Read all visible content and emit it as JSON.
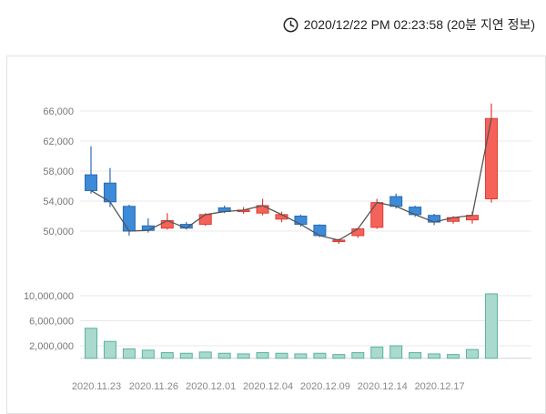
{
  "header": {
    "timestamp": "2020/12/22 PM 02:23:58 (20분 지연 정보)",
    "clock_icon": "clock-icon"
  },
  "colors": {
    "up_fill": "#f4625a",
    "up_stroke": "#e03b33",
    "down_fill": "#3c8ad8",
    "down_stroke": "#2a6cb5",
    "volume_fill": "#aad9cd",
    "volume_stroke": "#5ab3a0",
    "close_line": "#555555",
    "grid": "#e8e8e8",
    "axis_line": "#d5d5d5",
    "axis_text": "#777777",
    "date_text": "#888888",
    "header_text": "#222222"
  },
  "chart_data": {
    "type": "candlestick+volume",
    "title": "",
    "legend_position": "none",
    "grid": true,
    "price_axis": {
      "ticks": [
        50000,
        54000,
        58000,
        62000,
        66000
      ],
      "labels": [
        "50,000",
        "54,000",
        "58,000",
        "62,000",
        "66,000"
      ],
      "range": [
        45000,
        69000
      ]
    },
    "volume_axis": {
      "ticks": [
        2000000,
        6000000,
        10000000
      ],
      "labels": [
        "2,000,000",
        "6,000,000",
        "10,000,000"
      ],
      "range": [
        0,
        12000000
      ]
    },
    "x_ticks": [
      {
        "index": 0,
        "label": "2020.11.23"
      },
      {
        "index": 3,
        "label": "2020.11.26"
      },
      {
        "index": 6,
        "label": "2020.12.01"
      },
      {
        "index": 9,
        "label": "2020.12.04"
      },
      {
        "index": 12,
        "label": "2020.12.09"
      },
      {
        "index": 15,
        "label": "2020.12.14"
      },
      {
        "index": 18,
        "label": "2020.12.17"
      }
    ],
    "candles": [
      {
        "date": "2020.11.23",
        "open": 57500,
        "high": 61300,
        "low": 55000,
        "close": 55400,
        "volume": 4800000
      },
      {
        "date": "2020.11.24",
        "open": 56400,
        "high": 58400,
        "low": 53200,
        "close": 53900,
        "volume": 2700000
      },
      {
        "date": "2020.11.25",
        "open": 53300,
        "high": 53500,
        "low": 49400,
        "close": 50000,
        "volume": 1500000
      },
      {
        "date": "2020.11.26",
        "open": 50700,
        "high": 51700,
        "low": 49800,
        "close": 50100,
        "volume": 1300000
      },
      {
        "date": "2020.11.27",
        "open": 50400,
        "high": 52400,
        "low": 50200,
        "close": 51400,
        "volume": 900000
      },
      {
        "date": "2020.11.30",
        "open": 50900,
        "high": 51200,
        "low": 50200,
        "close": 50400,
        "volume": 800000
      },
      {
        "date": "2020.12.01",
        "open": 50900,
        "high": 52400,
        "low": 50700,
        "close": 52200,
        "volume": 1000000
      },
      {
        "date": "2020.12.02",
        "open": 53100,
        "high": 53400,
        "low": 52400,
        "close": 52600,
        "volume": 800000
      },
      {
        "date": "2020.12.03",
        "open": 52600,
        "high": 53200,
        "low": 52300,
        "close": 52800,
        "volume": 700000
      },
      {
        "date": "2020.12.04",
        "open": 52400,
        "high": 54300,
        "low": 52100,
        "close": 53400,
        "volume": 900000
      },
      {
        "date": "2020.12.07",
        "open": 51600,
        "high": 52600,
        "low": 51200,
        "close": 52200,
        "volume": 800000
      },
      {
        "date": "2020.12.08",
        "open": 52000,
        "high": 52200,
        "low": 50600,
        "close": 50900,
        "volume": 700000
      },
      {
        "date": "2020.12.09",
        "open": 50800,
        "high": 50900,
        "low": 49200,
        "close": 49400,
        "volume": 800000
      },
      {
        "date": "2020.12.10",
        "open": 48600,
        "high": 49000,
        "low": 48300,
        "close": 48800,
        "volume": 600000
      },
      {
        "date": "2020.12.11",
        "open": 49400,
        "high": 50400,
        "low": 49100,
        "close": 50300,
        "volume": 900000
      },
      {
        "date": "2020.12.14",
        "open": 50500,
        "high": 54300,
        "low": 50300,
        "close": 53800,
        "volume": 1800000
      },
      {
        "date": "2020.12.15",
        "open": 54600,
        "high": 55000,
        "low": 53000,
        "close": 53300,
        "volume": 2000000
      },
      {
        "date": "2020.12.16",
        "open": 53200,
        "high": 53400,
        "low": 51900,
        "close": 52200,
        "volume": 900000
      },
      {
        "date": "2020.12.17",
        "open": 52100,
        "high": 52300,
        "low": 50800,
        "close": 51200,
        "volume": 700000
      },
      {
        "date": "2020.12.18",
        "open": 51300,
        "high": 52000,
        "low": 51000,
        "close": 51800,
        "volume": 600000
      },
      {
        "date": "2020.12.21",
        "open": 51500,
        "high": 52600,
        "low": 51000,
        "close": 52100,
        "volume": 1400000
      },
      {
        "date": "2020.12.22",
        "open": 54300,
        "high": 67000,
        "low": 53800,
        "close": 65000,
        "volume": 10300000
      }
    ]
  }
}
